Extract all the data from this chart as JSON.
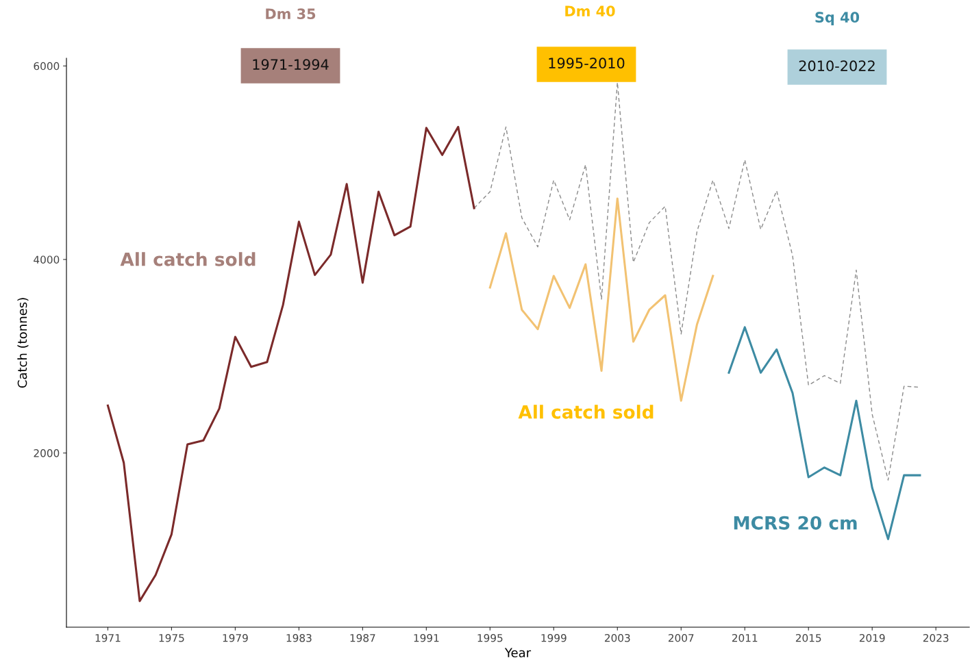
{
  "chart_data": {
    "type": "line",
    "xlabel": "Year",
    "ylabel": "Catch (tonnes)",
    "xlim": [
      1968.4,
      2025.1
    ],
    "ylim": [
      200,
      6080
    ],
    "xticks": [
      1971,
      1975,
      1979,
      1983,
      1987,
      1991,
      1995,
      1999,
      2003,
      2007,
      2011,
      2015,
      2019,
      2023
    ],
    "yticks": [
      2000,
      4000,
      6000
    ],
    "marker": "none",
    "series": [
      {
        "color": "#8a8a8a",
        "line_style": "dashed",
        "x": [
          1994,
          1995,
          1996,
          1997,
          1998,
          1999,
          2000,
          2001,
          2002,
          2003,
          2004,
          2005,
          2006,
          2007,
          2008,
          2009,
          2010,
          2011,
          2012,
          2013,
          2014,
          2015,
          2016,
          2017,
          2018,
          2019,
          2020,
          2021,
          2022
        ],
        "values": [
          4530,
          4700,
          5370,
          4430,
          4130,
          4820,
          4410,
          4980,
          3590,
          5830,
          3970,
          4380,
          4550,
          3230,
          4290,
          4820,
          4320,
          5030,
          4310,
          4710,
          4040,
          2700,
          2800,
          2720,
          3890,
          2400,
          1720,
          2690,
          2680
        ]
      },
      {
        "color": "#7b2a2a",
        "line_style": "solid",
        "x": [
          1971,
          1972,
          1973,
          1974,
          1975,
          1976,
          1977,
          1978,
          1979,
          1980,
          1981,
          1982,
          1983,
          1984,
          1985,
          1986,
          1987,
          1988,
          1989,
          1990,
          1991,
          1992,
          1993,
          1994
        ],
        "values": [
          2490,
          1900,
          470,
          740,
          1160,
          2090,
          2130,
          2460,
          3200,
          2890,
          2940,
          3530,
          4390,
          3840,
          4050,
          4780,
          3760,
          4700,
          4250,
          4340,
          5360,
          5080,
          5370,
          4530
        ]
      },
      {
        "color": "#f2c272",
        "line_style": "solid",
        "x": [
          1995,
          1996,
          1997,
          1998,
          1999,
          2000,
          2001,
          2002,
          2003,
          2004,
          2005,
          2006,
          2007,
          2008,
          2009
        ],
        "values": [
          3710,
          4270,
          3480,
          3280,
          3830,
          3500,
          3950,
          2850,
          4630,
          3150,
          3480,
          3630,
          2540,
          3330,
          3830
        ]
      },
      {
        "color": "#3d8ba3",
        "line_style": "solid",
        "x": [
          2010,
          2011,
          2012,
          2013,
          2014,
          2015,
          2016,
          2017,
          2018,
          2019,
          2020,
          2021,
          2022
        ],
        "values": [
          2830,
          3300,
          2830,
          3070,
          2620,
          1750,
          1850,
          1770,
          2540,
          1640,
          1110,
          1770,
          1770
        ]
      }
    ],
    "annotations": [
      "Dm 35",
      "1971-1994",
      "Dm 40",
      "1995-2010",
      "Sq 40",
      "2010-2022",
      "All catch sold",
      "All catch sold",
      "MCRS 20 cm"
    ]
  }
}
